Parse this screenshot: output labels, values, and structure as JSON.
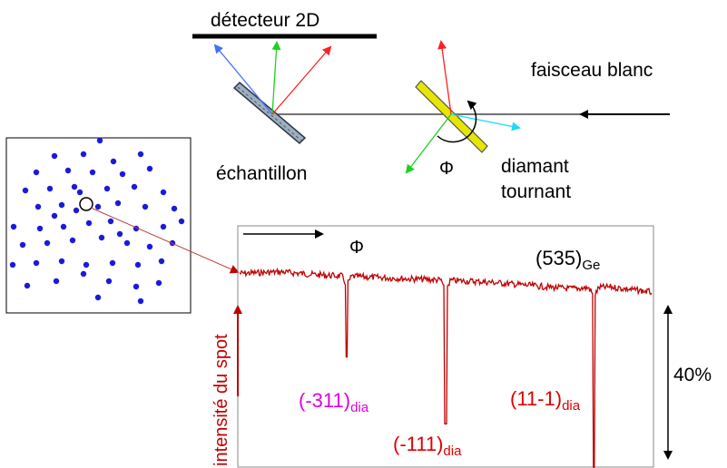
{
  "labels": {
    "detector": "détecteur 2D",
    "beam": "faisceau blanc",
    "sample": "échantillon",
    "diamond_line1": "diamant",
    "diamond_line2": "tournant",
    "phi_top": "Φ",
    "phi_plot": "Φ",
    "reflection_main": "(535)",
    "reflection_main_sub": "Ge",
    "y_axis": "intensité du spot",
    "scale": "40%",
    "dip1": "(-311)",
    "dip1_sub": "dia",
    "dip2": "(-111)",
    "dip2_sub": "dia",
    "dip3": "(11-1)",
    "dip3_sub": "dia"
  },
  "colors": {
    "signal": "#c00000",
    "dip1_label": "#e000e0",
    "dip_labels": "#e00000",
    "spots": "#1a1adc",
    "diamond": "#e6e600",
    "sample": "#9ab0c0",
    "ray_blue": "#4070ff",
    "ray_green": "#20d020",
    "ray_red": "#ff2020",
    "ray_cyan": "#20d8ff"
  },
  "chart_data": {
    "type": "line",
    "title": "(535)Ge",
    "xlabel": "Φ",
    "ylabel": "intensité du spot",
    "scale_label": "40%",
    "baseline_x": [
      0,
      0.1,
      0.2,
      0.3,
      0.4,
      0.5,
      0.6,
      0.7,
      0.8,
      0.9,
      1.0
    ],
    "baseline_y": [
      0.97,
      0.98,
      0.96,
      0.95,
      0.94,
      0.93,
      0.92,
      0.9,
      0.88,
      0.89,
      0.86
    ],
    "dips": [
      {
        "name": "(-311)dia",
        "x": 0.26,
        "depth": 0.45
      },
      {
        "name": "(-111)dia",
        "x": 0.5,
        "depth": 0.8
      },
      {
        "name": "(11-1)dia",
        "x": 0.86,
        "depth": 1.0
      }
    ]
  }
}
